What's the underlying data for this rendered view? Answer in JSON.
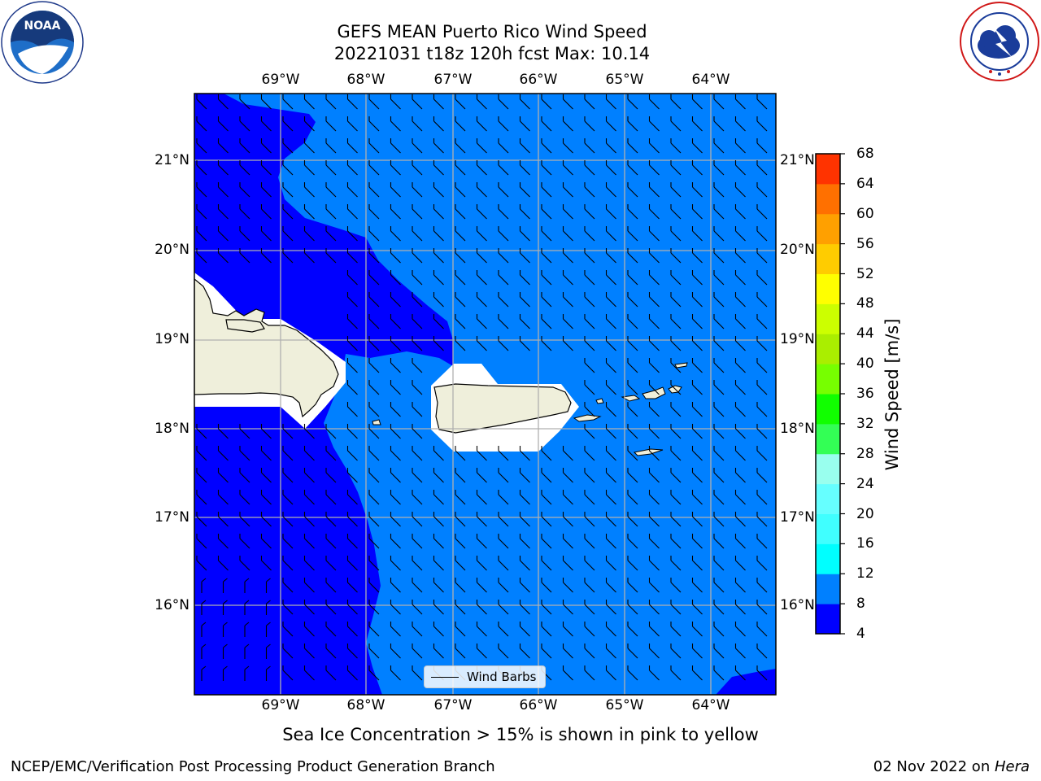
{
  "title": {
    "line1": "GEFS MEAN Puerto Rico Wind Speed",
    "line2": "20221031 t18z 120h fcst   Max: 10.14"
  },
  "logos": {
    "noaa_text": "NOAA",
    "noaa_ring": "NATIONAL OCEANIC AND ATMOSPHERIC ADMINISTRATION · U.S. DEPARTMENT OF COMMERCE",
    "nws_ring": "NATIONAL WEATHER SERVICE"
  },
  "map": {
    "lon_labels": [
      "69°W",
      "68°W",
      "67°W",
      "66°W",
      "65°W",
      "64°W"
    ],
    "lat_labels": [
      "21°N",
      "20°N",
      "19°N",
      "18°N",
      "17°N",
      "16°N"
    ],
    "legend_label": "Wind Barbs",
    "colors": {
      "speed_4_8": "#0000ff",
      "speed_8_12": "#0080ff",
      "land": "#efefdb",
      "masked": "#ffffff",
      "grid": "#b0b0b0"
    }
  },
  "colorbar": {
    "title": "Wind Speed [m/s]",
    "ticks": [
      "4",
      "8",
      "12",
      "16",
      "20",
      "24",
      "28",
      "32",
      "36",
      "40",
      "44",
      "48",
      "52",
      "56",
      "60",
      "64",
      "68"
    ],
    "colors": [
      "#0000ff",
      "#0080ff",
      "#00ffff",
      "#40ffff",
      "#66ffff",
      "#99ffee",
      "#33ff55",
      "#11ff00",
      "#77ff00",
      "#aaee00",
      "#ccff00",
      "#ffff00",
      "#ffcc00",
      "#ffa000",
      "#ff7000",
      "#ff3300",
      "#ff0000"
    ]
  },
  "footer": {
    "note": "Sea Ice Concentration > 15% is shown in pink to yellow",
    "left": "NCEP/EMC/Verification Post Processing Product Generation Branch",
    "right_prefix": "02 Nov 2022 on ",
    "right_machine": "Hera"
  }
}
